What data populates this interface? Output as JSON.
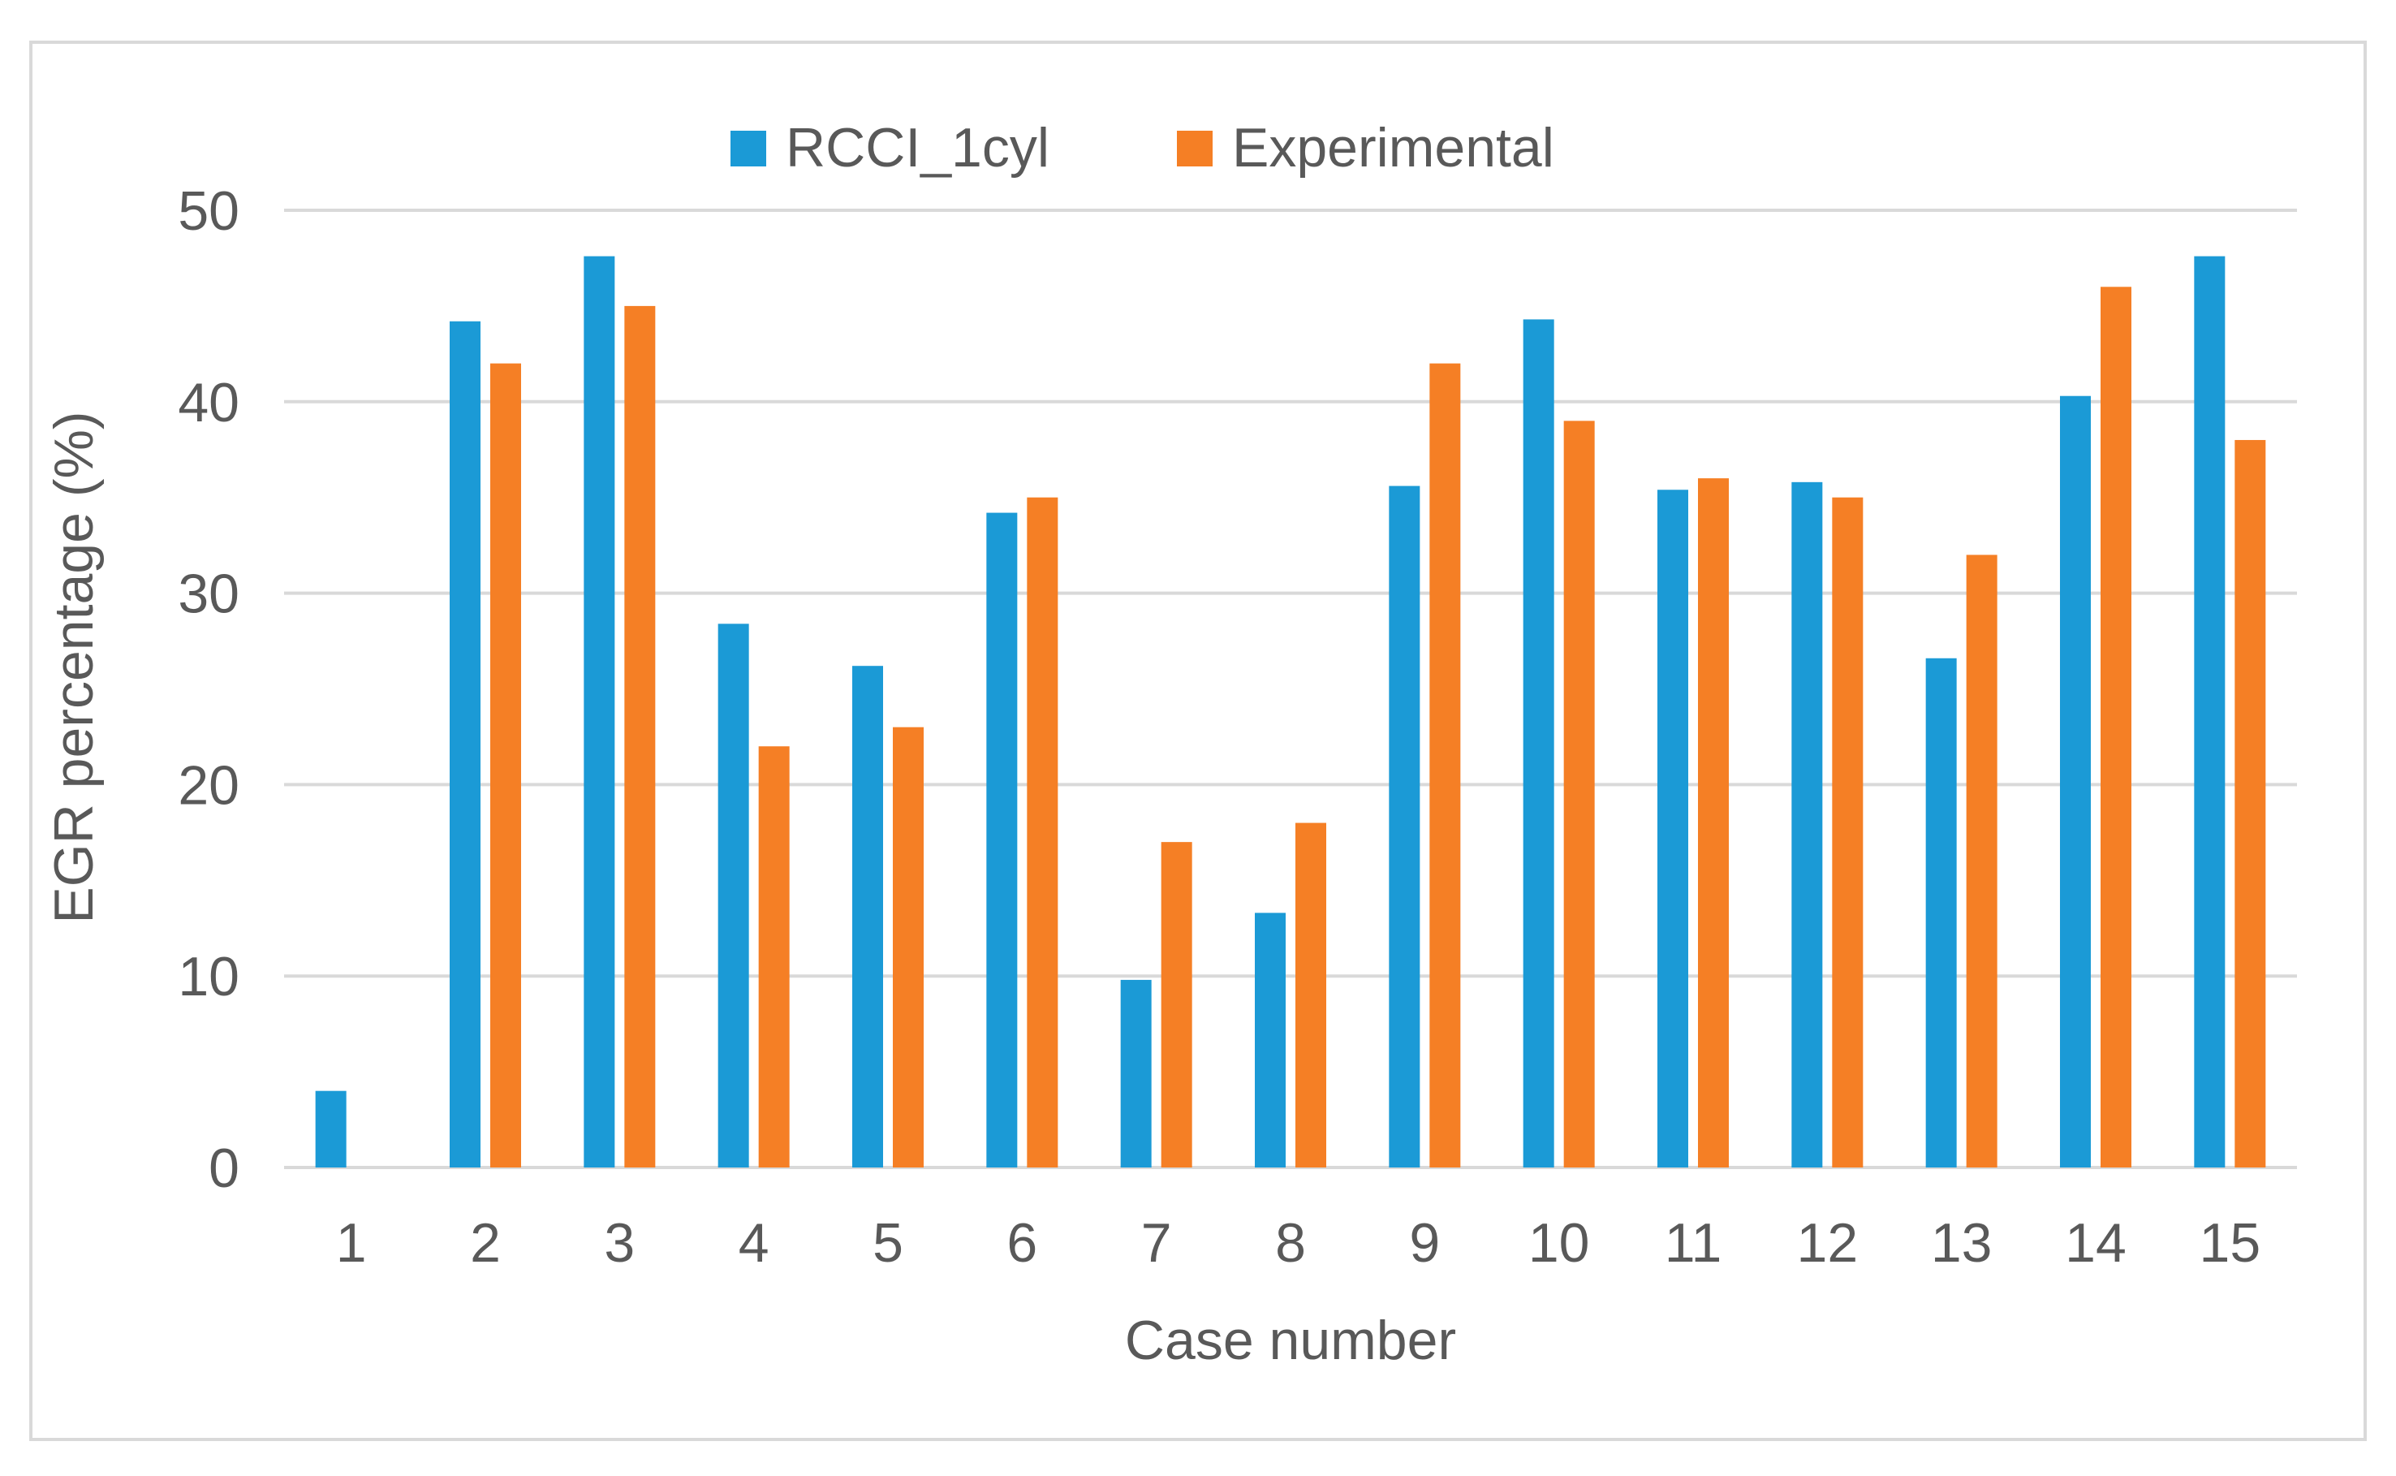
{
  "chart_data": {
    "type": "bar",
    "title": "",
    "xlabel": "Case number",
    "ylabel": "EGR percentage (%)",
    "ylim": [
      0,
      50
    ],
    "yticks": [
      0,
      10,
      20,
      30,
      40,
      50
    ],
    "grid": true,
    "legend_position": "top-center",
    "categories": [
      "1",
      "2",
      "3",
      "4",
      "5",
      "6",
      "7",
      "8",
      "9",
      "10",
      "11",
      "12",
      "13",
      "14",
      "15"
    ],
    "series": [
      {
        "name": "RCCI_1cyl",
        "color": "#1b9ad6",
        "values": [
          4.0,
          44.2,
          47.6,
          28.4,
          26.2,
          34.2,
          9.8,
          13.3,
          35.6,
          44.3,
          35.4,
          35.8,
          26.6,
          40.3,
          47.6
        ]
      },
      {
        "name": "Experimental",
        "color": "#f57f25",
        "values": [
          null,
          42.0,
          45.0,
          22.0,
          23.0,
          35.0,
          17.0,
          18.0,
          42.0,
          39.0,
          36.0,
          35.0,
          32.0,
          46.0,
          38.0
        ]
      }
    ],
    "grid_color": "#d9d9d9",
    "text_color": "#595959"
  }
}
